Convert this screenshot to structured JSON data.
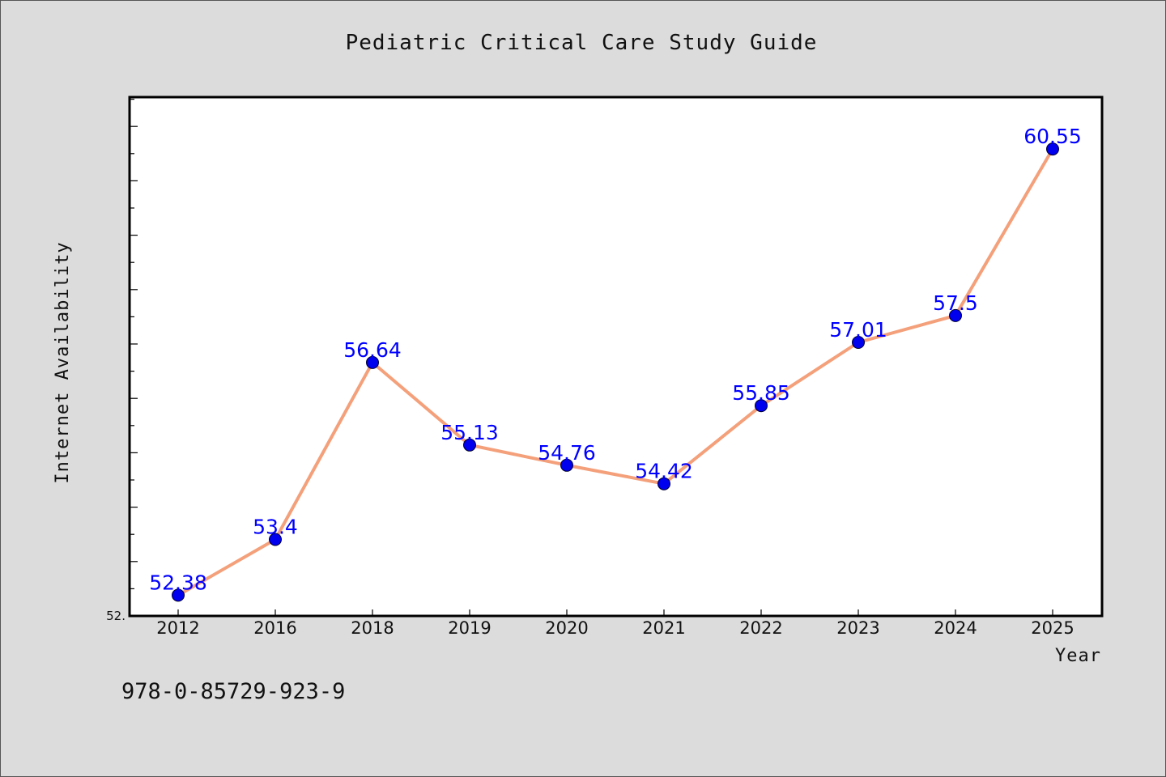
{
  "chart_data": {
    "type": "line",
    "title": "Pediatric Critical Care Study Guide",
    "xlabel": "Year",
    "ylabel": "Internet Availability",
    "categories": [
      "2012",
      "2016",
      "2018",
      "2019",
      "2020",
      "2021",
      "2022",
      "2023",
      "2024",
      "2025"
    ],
    "series": [
      {
        "values": [
          52.38,
          53.4,
          56.64,
          55.13,
          54.76,
          54.42,
          55.85,
          57.01,
          57.5,
          60.55
        ],
        "labels": [
          "52.38",
          "53.4",
          "56.64",
          "55.13",
          "54.76",
          "54.42",
          "55.85",
          "57.01",
          "57.5",
          "60.55"
        ],
        "line_color": "#f4a07a",
        "marker_color": "#0000ee",
        "label_color": "#0000ff"
      }
    ],
    "ylim": [
      52.0,
      61.5
    ],
    "y_tick_label_min": "52.",
    "grid": false,
    "legend": "none",
    "plot_background": "#ffffff",
    "figure_background": "#dcdcdc"
  },
  "footer": {
    "code": "978-0-85729-923-9"
  }
}
